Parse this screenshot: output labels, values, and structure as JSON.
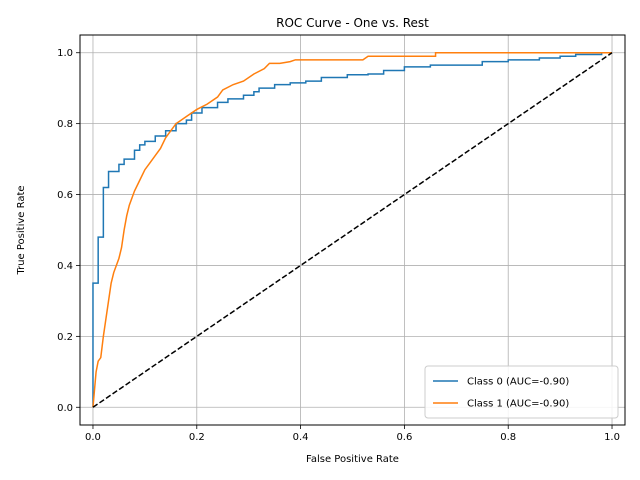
{
  "chart_data": {
    "type": "line",
    "title": "ROC Curve - One vs. Rest",
    "xlabel": "False Positive Rate",
    "ylabel": "True Positive Rate",
    "xlim": [
      -0.025,
      1.025
    ],
    "ylim": [
      -0.05,
      1.05
    ],
    "xticks": [
      "0.0",
      "0.2",
      "0.4",
      "0.6",
      "0.8",
      "1.0"
    ],
    "yticks": [
      "0.0",
      "0.2",
      "0.4",
      "0.6",
      "0.8",
      "1.0"
    ],
    "grid": true,
    "legend_position": "lower-right",
    "series": [
      {
        "name": "Class 0 (AUC=-0.90)",
        "color": "#1f77b4",
        "step": true,
        "points": [
          [
            0,
            0
          ],
          [
            0,
            0.35
          ],
          [
            0.01,
            0.35
          ],
          [
            0.01,
            0.48
          ],
          [
            0.02,
            0.48
          ],
          [
            0.02,
            0.62
          ],
          [
            0.03,
            0.62
          ],
          [
            0.03,
            0.665
          ],
          [
            0.05,
            0.665
          ],
          [
            0.05,
            0.685
          ],
          [
            0.06,
            0.685
          ],
          [
            0.06,
            0.7
          ],
          [
            0.08,
            0.7
          ],
          [
            0.08,
            0.725
          ],
          [
            0.09,
            0.725
          ],
          [
            0.09,
            0.74
          ],
          [
            0.1,
            0.74
          ],
          [
            0.1,
            0.75
          ],
          [
            0.12,
            0.75
          ],
          [
            0.12,
            0.765
          ],
          [
            0.14,
            0.765
          ],
          [
            0.14,
            0.78
          ],
          [
            0.16,
            0.78
          ],
          [
            0.16,
            0.8
          ],
          [
            0.18,
            0.8
          ],
          [
            0.18,
            0.81
          ],
          [
            0.19,
            0.81
          ],
          [
            0.19,
            0.83
          ],
          [
            0.21,
            0.83
          ],
          [
            0.21,
            0.845
          ],
          [
            0.24,
            0.845
          ],
          [
            0.24,
            0.86
          ],
          [
            0.26,
            0.86
          ],
          [
            0.26,
            0.87
          ],
          [
            0.29,
            0.87
          ],
          [
            0.29,
            0.88
          ],
          [
            0.31,
            0.88
          ],
          [
            0.31,
            0.89
          ],
          [
            0.32,
            0.89
          ],
          [
            0.32,
            0.9
          ],
          [
            0.35,
            0.9
          ],
          [
            0.35,
            0.91
          ],
          [
            0.38,
            0.91
          ],
          [
            0.38,
            0.915
          ],
          [
            0.41,
            0.915
          ],
          [
            0.41,
            0.92
          ],
          [
            0.44,
            0.92
          ],
          [
            0.44,
            0.93
          ],
          [
            0.49,
            0.93
          ],
          [
            0.49,
            0.938
          ],
          [
            0.53,
            0.938
          ],
          [
            0.53,
            0.94
          ],
          [
            0.56,
            0.94
          ],
          [
            0.56,
            0.95
          ],
          [
            0.6,
            0.95
          ],
          [
            0.6,
            0.96
          ],
          [
            0.65,
            0.96
          ],
          [
            0.65,
            0.965
          ],
          [
            0.75,
            0.965
          ],
          [
            0.75,
            0.975
          ],
          [
            0.8,
            0.975
          ],
          [
            0.8,
            0.98
          ],
          [
            0.86,
            0.98
          ],
          [
            0.86,
            0.985
          ],
          [
            0.9,
            0.985
          ],
          [
            0.9,
            0.99
          ],
          [
            0.93,
            0.99
          ],
          [
            0.93,
            0.995
          ],
          [
            0.98,
            0.995
          ],
          [
            0.98,
            1.0
          ],
          [
            1.0,
            1.0
          ]
        ]
      },
      {
        "name": "Class 1 (AUC=-0.90)",
        "color": "#ff7f0e",
        "step": false,
        "points": [
          [
            0,
            0
          ],
          [
            0.003,
            0.05
          ],
          [
            0.006,
            0.1
          ],
          [
            0.01,
            0.13
          ],
          [
            0.015,
            0.14
          ],
          [
            0.02,
            0.2
          ],
          [
            0.025,
            0.25
          ],
          [
            0.03,
            0.3
          ],
          [
            0.035,
            0.35
          ],
          [
            0.04,
            0.38
          ],
          [
            0.045,
            0.4
          ],
          [
            0.05,
            0.42
          ],
          [
            0.055,
            0.45
          ],
          [
            0.06,
            0.5
          ],
          [
            0.065,
            0.54
          ],
          [
            0.07,
            0.57
          ],
          [
            0.08,
            0.61
          ],
          [
            0.09,
            0.64
          ],
          [
            0.1,
            0.67
          ],
          [
            0.11,
            0.69
          ],
          [
            0.12,
            0.71
          ],
          [
            0.13,
            0.73
          ],
          [
            0.14,
            0.76
          ],
          [
            0.15,
            0.78
          ],
          [
            0.16,
            0.8
          ],
          [
            0.17,
            0.81
          ],
          [
            0.18,
            0.82
          ],
          [
            0.2,
            0.84
          ],
          [
            0.22,
            0.855
          ],
          [
            0.24,
            0.875
          ],
          [
            0.25,
            0.895
          ],
          [
            0.27,
            0.91
          ],
          [
            0.29,
            0.92
          ],
          [
            0.31,
            0.94
          ],
          [
            0.33,
            0.955
          ],
          [
            0.34,
            0.97
          ],
          [
            0.36,
            0.97
          ],
          [
            0.38,
            0.975
          ],
          [
            0.39,
            0.98
          ],
          [
            0.52,
            0.98
          ],
          [
            0.53,
            0.99
          ],
          [
            0.66,
            0.99
          ],
          [
            0.66,
            1.0
          ],
          [
            1.0,
            1.0
          ]
        ]
      },
      {
        "name": "",
        "color": "#000000",
        "dashed": true,
        "points": [
          [
            0,
            0
          ],
          [
            1,
            1
          ]
        ]
      }
    ]
  }
}
